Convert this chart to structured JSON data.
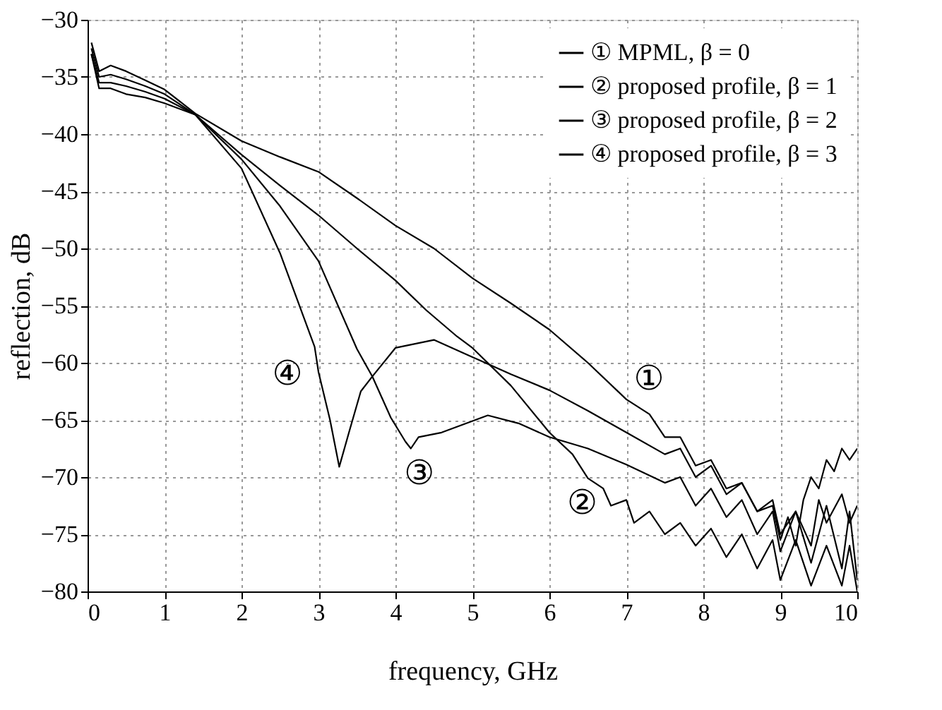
{
  "chart_data": {
    "type": "line",
    "xlabel": "frequency, GHz",
    "ylabel": "reflection, dB",
    "xlim": [
      0,
      10
    ],
    "ylim": [
      -80,
      -30
    ],
    "xticks": [
      0,
      1,
      2,
      3,
      4,
      5,
      6,
      7,
      8,
      9,
      10
    ],
    "yticks": [
      -80,
      -75,
      -70,
      -65,
      -60,
      -55,
      -50,
      -45,
      -40,
      -35,
      -30
    ],
    "grid": true,
    "legend": "top right",
    "line_style": "solid",
    "marker": "none",
    "series": [
      {
        "name": "① MPML, β = 0",
        "color": "#000000",
        "x": [
          0.05,
          0.15,
          0.3,
          0.5,
          0.75,
          1,
          1.4,
          2,
          2.5,
          3,
          3.5,
          4,
          4.5,
          5,
          5.5,
          6,
          6.5,
          7,
          7.3,
          7.5,
          7.7,
          7.9,
          8.1,
          8.3,
          8.5,
          8.7,
          8.9,
          9.0,
          9.1,
          9.2,
          9.3,
          9.4,
          9.5,
          9.6,
          9.7,
          9.8,
          9.9,
          10
        ],
        "values": [
          -32,
          -34.5,
          -34,
          -34.5,
          -35.3,
          -36.1,
          -38.2,
          -40.6,
          -42,
          -43.3,
          -45.6,
          -48,
          -50,
          -52.6,
          -54.8,
          -57.1,
          -60,
          -63.2,
          -64.5,
          -66.5,
          -66.5,
          -69,
          -68.5,
          -71,
          -70.5,
          -73,
          -72.5,
          -75.5,
          -73.5,
          -76,
          -72,
          -70,
          -71,
          -68.5,
          -69.5,
          -67.5,
          -68.5,
          -67.5
        ]
      },
      {
        "name": "② proposed profile, β = 1",
        "color": "#000000",
        "x": [
          0.05,
          0.15,
          0.3,
          0.5,
          0.75,
          1,
          1.4,
          2,
          2.5,
          3,
          3.5,
          4,
          4.4,
          4.8,
          5,
          5.5,
          6,
          6.3,
          6.5,
          6.7,
          6.8,
          7,
          7.1,
          7.3,
          7.5,
          7.7,
          7.9,
          8.1,
          8.3,
          8.5,
          8.7,
          8.9,
          9.0,
          9.2,
          9.4,
          9.6,
          9.8,
          9.9,
          10
        ],
        "values": [
          -32.5,
          -35,
          -34.8,
          -35.2,
          -35.8,
          -36.5,
          -38.3,
          -41.8,
          -44.5,
          -47.1,
          -50,
          -52.8,
          -55.4,
          -57.7,
          -58.7,
          -62,
          -66.1,
          -68,
          -70.1,
          -71,
          -72.5,
          -72,
          -74,
          -73,
          -75,
          -74,
          -76,
          -74.5,
          -77,
          -75,
          -78,
          -75.5,
          -79,
          -75.5,
          -79.5,
          -76,
          -79.5,
          -76,
          -80
        ]
      },
      {
        "name": "③ proposed profile, β = 2",
        "color": "#000000",
        "x": [
          0.05,
          0.15,
          0.3,
          0.5,
          0.75,
          1,
          1.4,
          2,
          2.5,
          3,
          3.5,
          3.7,
          3.94,
          4.13,
          4.2,
          4.3,
          4.6,
          5.2,
          5.6,
          6,
          6.5,
          7,
          7.5,
          7.7,
          7.9,
          8.1,
          8.3,
          8.5,
          8.7,
          8.9,
          9.0,
          9.2,
          9.4,
          9.6,
          9.8,
          9.9,
          10
        ],
        "values": [
          -33,
          -35.5,
          -35.5,
          -35.8,
          -36.3,
          -36.9,
          -38.3,
          -42.2,
          -46.3,
          -51.1,
          -58.8,
          -61.2,
          -64.8,
          -66.9,
          -67.5,
          -66.5,
          -66.1,
          -64.6,
          -65.3,
          -66.5,
          -67.5,
          -68.9,
          -70.5,
          -70,
          -72.5,
          -71,
          -73.5,
          -72,
          -75,
          -73,
          -76.5,
          -73,
          -77.5,
          -72.5,
          -78,
          -73,
          -79
        ]
      },
      {
        "name": "④ proposed profile, β = 3",
        "color": "#000000",
        "x": [
          0.05,
          0.15,
          0.3,
          0.5,
          0.75,
          1,
          1.4,
          2,
          2.5,
          2.95,
          3.0,
          3.15,
          3.27,
          3.4,
          3.55,
          3.7,
          4.0,
          4.5,
          5,
          5.5,
          6,
          6.5,
          7,
          7.5,
          7.7,
          7.9,
          8.1,
          8.3,
          8.5,
          8.7,
          8.9,
          9.0,
          9.2,
          9.4,
          9.5,
          9.6,
          9.8,
          9.9,
          10
        ],
        "values": [
          -33,
          -36,
          -36,
          -36.5,
          -36.8,
          -37.3,
          -38.3,
          -43,
          -50.4,
          -58.6,
          -60.8,
          -65,
          -69.1,
          -66,
          -62.5,
          -61.2,
          -58.7,
          -58,
          -59.5,
          -61,
          -62.4,
          -64.2,
          -66.1,
          -68,
          -67.5,
          -70,
          -69,
          -71.5,
          -70.5,
          -73,
          -72,
          -75,
          -73,
          -76,
          -72,
          -74,
          -71.5,
          -74,
          -72.5
        ]
      }
    ],
    "annotations": [
      {
        "text": "①",
        "x": 7,
        "y": -63.2
      },
      {
        "text": "②",
        "x": 6.5,
        "y": -70.1
      },
      {
        "text": "③",
        "x": 4.2,
        "y": -67.5
      },
      {
        "text": "④",
        "x": 3.0,
        "y": -60.8
      }
    ]
  }
}
